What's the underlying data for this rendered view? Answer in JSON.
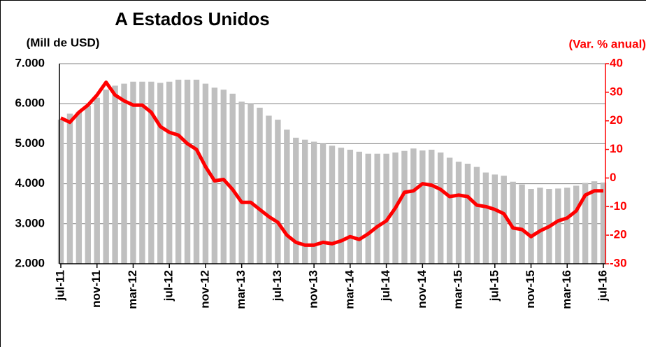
{
  "chart_data": {
    "type": "bar_line",
    "title": "A Estados Unidos",
    "y_label": "(Mill de USD)",
    "y2_label": "(Var. % anual)",
    "categories": [
      "jul-11",
      null,
      null,
      null,
      "nov-11",
      null,
      null,
      null,
      "mar-12",
      null,
      null,
      null,
      "jul-12",
      null,
      null,
      null,
      "nov-12",
      null,
      null,
      null,
      "mar-13",
      null,
      null,
      null,
      "jul-13",
      null,
      null,
      null,
      "nov-13",
      null,
      null,
      null,
      "mar-14",
      null,
      null,
      null,
      "jul-14",
      null,
      null,
      null,
      "nov-14",
      null,
      null,
      null,
      "mar-15",
      null,
      null,
      null,
      "jul-15",
      null,
      null,
      null,
      "nov-15",
      null,
      null,
      null,
      "mar-16",
      null,
      null,
      null,
      "jul-16"
    ],
    "series": [
      {
        "type": "bar",
        "color": "#bfbfbf",
        "axis": "y",
        "values": [
          5600,
          5750,
          5800,
          5950,
          6150,
          6350,
          6450,
          6500,
          6550,
          6550,
          6550,
          6520,
          6550,
          6600,
          6600,
          6600,
          6500,
          6400,
          6350,
          6250,
          6050,
          6000,
          5900,
          5700,
          5600,
          5350,
          5150,
          5100,
          5050,
          5000,
          4950,
          4900,
          4850,
          4800,
          4750,
          4750,
          4750,
          4780,
          4820,
          4880,
          4830,
          4850,
          4780,
          4650,
          4550,
          4500,
          4420,
          4280,
          4230,
          4200,
          4050,
          3980,
          3870,
          3900,
          3870,
          3880,
          3900,
          3950,
          4020,
          4060,
          4030
        ]
      },
      {
        "type": "line",
        "color": "#ff0000",
        "axis": "y2",
        "values": [
          21,
          19.5,
          23,
          25.5,
          29,
          33.5,
          29,
          27,
          25.5,
          25.5,
          23,
          18,
          16,
          15,
          12,
          10,
          4,
          -1,
          -0.5,
          -4,
          -8.5,
          -8.5,
          -11,
          -13.5,
          -15.5,
          -20,
          -22.5,
          -23.5,
          -23.5,
          -22.5,
          -23,
          -22,
          -20.5,
          -21.5,
          -19.5,
          -17,
          -15,
          -10.5,
          -5,
          -4.5,
          -2,
          -2.5,
          -4,
          -6.5,
          -6,
          -6.5,
          -9.5,
          -10,
          -11,
          -12.5,
          -17.5,
          -18,
          -20.5,
          -18.5,
          -17,
          -15,
          -14,
          -11.5,
          -6,
          -4.5,
          -4.5
        ]
      }
    ],
    "ylim": [
      2000,
      7000
    ],
    "yticks": [
      {
        "value": 2000,
        "label": "2.000"
      },
      {
        "value": 3000,
        "label": "3.000"
      },
      {
        "value": 4000,
        "label": "4.000"
      },
      {
        "value": 5000,
        "label": "5.000"
      },
      {
        "value": 6000,
        "label": "6.000"
      },
      {
        "value": 7000,
        "label": "7.000"
      }
    ],
    "y2lim": [
      -30,
      40
    ],
    "y2ticks": [
      -30,
      -20,
      -10,
      0,
      10,
      20,
      30,
      40
    ],
    "y2_color": "#ff0000",
    "grid": true
  }
}
